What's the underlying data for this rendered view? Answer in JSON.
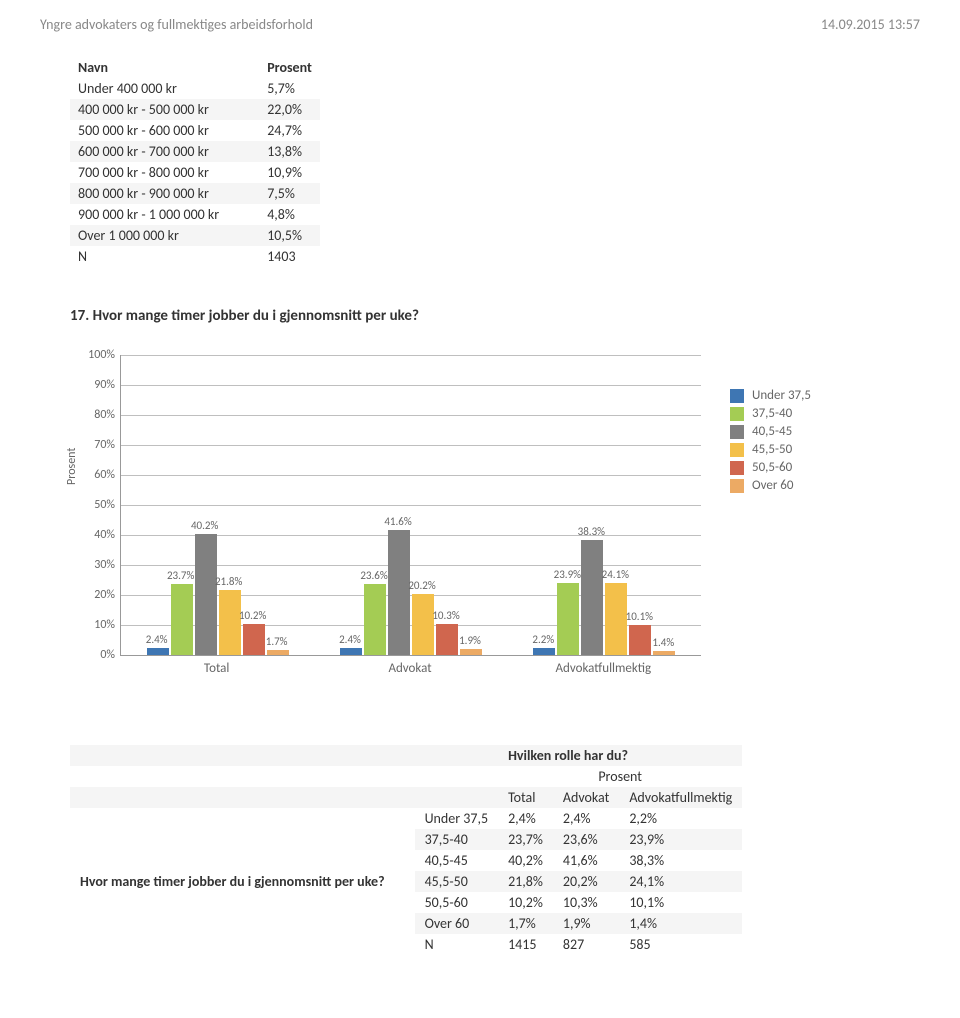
{
  "header": {
    "title": "Yngre advokaters og fullmektiges arbeidsforhold",
    "timestamp": "14.09.2015 13:57"
  },
  "table1": {
    "col_name": "Navn",
    "col_pct": "Prosent",
    "rows": [
      {
        "label": "Under 400 000 kr",
        "value": "5,7%"
      },
      {
        "label": "400 000 kr - 500 000 kr",
        "value": "22,0%"
      },
      {
        "label": "500 000 kr - 600 000 kr",
        "value": "24,7%"
      },
      {
        "label": "600 000 kr - 700 000 kr",
        "value": "13,8%"
      },
      {
        "label": "700 000 kr - 800 000 kr",
        "value": "10,9%"
      },
      {
        "label": "800 000 kr - 900 000 kr",
        "value": "7,5%"
      },
      {
        "label": "900 000 kr - 1 000 000 kr",
        "value": "4,8%"
      },
      {
        "label": "Over 1 000 000 kr",
        "value": "10,5%"
      },
      {
        "label": "N",
        "value": "1403"
      }
    ],
    "alt_indices": [
      1,
      3,
      5,
      7
    ]
  },
  "section_title": "17. Hvor mange timer jobber du i gjennomsnitt per uke?",
  "chart": {
    "ylabel": "Prosent",
    "yticks": [
      "0%",
      "10%",
      "20%",
      "30%",
      "40%",
      "50%",
      "60%",
      "70%",
      "80%",
      "90%",
      "100%"
    ],
    "ymax": 100,
    "ytick_step": 10,
    "categories": [
      "Total",
      "Advokat",
      "Advokatfullmektig"
    ],
    "series": [
      {
        "name": "Under 37,5",
        "color": "#3e76b3"
      },
      {
        "name": "37,5-40",
        "color": "#a4cc54"
      },
      {
        "name": "40,5-45",
        "color": "#808080"
      },
      {
        "name": "45,5-50",
        "color": "#f3c04a"
      },
      {
        "name": "50,5-60",
        "color": "#d0664e"
      },
      {
        "name": "Over 60",
        "color": "#ecaa64"
      }
    ],
    "data": [
      [
        "2.4%",
        "23.7%",
        "40.2%",
        "21.8%",
        "10.2%",
        "1.7%"
      ],
      [
        "2.4%",
        "23.6%",
        "41.6%",
        "20.2%",
        "10.3%",
        "1.9%"
      ],
      [
        "2.2%",
        "23.9%",
        "38.3%",
        "24.1%",
        "10.1%",
        "1.4%"
      ]
    ],
    "values": [
      [
        2.4,
        23.7,
        40.2,
        21.8,
        10.2,
        1.7
      ],
      [
        2.4,
        23.6,
        41.6,
        20.2,
        10.3,
        1.9
      ],
      [
        2.2,
        23.9,
        38.3,
        24.1,
        10.1,
        1.4
      ]
    ]
  },
  "table2": {
    "super_header": "Hvilken rolle har du?",
    "super_sub": "Prosent",
    "cols": [
      "Total",
      "Advokat",
      "Advokatfullmektig"
    ],
    "rowlabel": "Hvor mange timer jobber du i gjennomsnitt per uke?",
    "rows": [
      {
        "label": "Under 37,5",
        "vals": [
          "2,4%",
          "2,4%",
          "2,2%"
        ]
      },
      {
        "label": "37,5-40",
        "vals": [
          "23,7%",
          "23,6%",
          "23,9%"
        ]
      },
      {
        "label": "40,5-45",
        "vals": [
          "40,2%",
          "41,6%",
          "38,3%"
        ]
      },
      {
        "label": "45,5-50",
        "vals": [
          "21,8%",
          "20,2%",
          "24,1%"
        ]
      },
      {
        "label": "50,5-60",
        "vals": [
          "10,2%",
          "10,3%",
          "10,1%"
        ]
      },
      {
        "label": "Over 60",
        "vals": [
          "1,7%",
          "1,9%",
          "1,4%"
        ]
      },
      {
        "label": "N",
        "vals": [
          "1415",
          "827",
          "585"
        ]
      }
    ],
    "alt_indices": [
      1,
      3,
      5
    ]
  }
}
